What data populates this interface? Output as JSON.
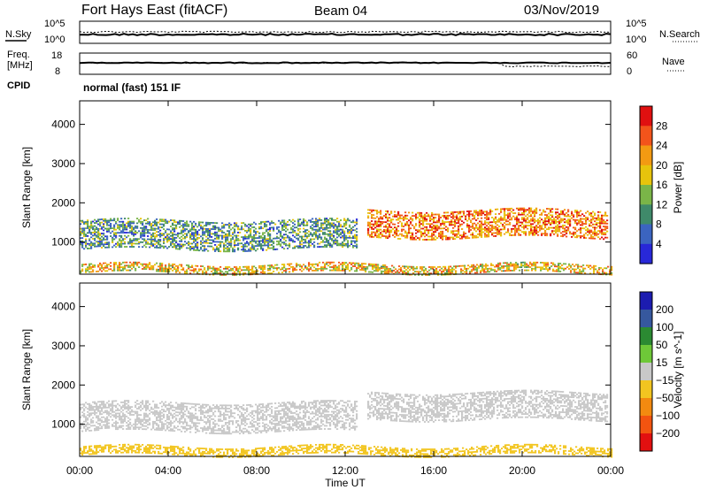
{
  "header": {
    "station": "Fort Hays East (fitACF)",
    "beam": "Beam 04",
    "date": "03/Nov/2019"
  },
  "noise_panel": {
    "left_label": "N.Sky",
    "right_label": "N.Search",
    "left_ticks": [
      "10^5",
      "10^0"
    ],
    "right_ticks": [
      "10^5",
      "10^0"
    ]
  },
  "freq_panel": {
    "left_label_1": "Freq.",
    "left_label_2": "[MHz]",
    "left_ticks": [
      "18",
      "8"
    ],
    "right_label": "Nave",
    "right_ticks": [
      "60",
      "0"
    ]
  },
  "cpid": {
    "label": "CPID",
    "mode_text": "normal (fast) 151 IF"
  },
  "chart_data": [
    {
      "type": "heatmap",
      "title": "",
      "xlabel": "Time UT",
      "ylabel": "Slant Range [km]",
      "xlim": [
        "00:00",
        "24:00"
      ],
      "x_ticks": [
        "00:00",
        "04:00",
        "08:00",
        "12:00",
        "16:00",
        "20:00",
        "00:00"
      ],
      "ylim": [
        180,
        4600
      ],
      "y_ticks": [
        1000,
        2000,
        3000,
        4000
      ],
      "colorbar": {
        "label": "Power [dB]",
        "ticks": [
          4,
          8,
          12,
          16,
          20,
          24,
          28
        ],
        "range": [
          0,
          30
        ]
      },
      "parameter": "power",
      "echo_regions": [
        {
          "name": "near-range band",
          "t_start": 0.0,
          "t_end": 24.0,
          "range_km": [
            200,
            420
          ],
          "value": 18
        },
        {
          "name": "morning band",
          "t_start": 0.0,
          "t_end": 12.5,
          "range_km": [
            800,
            1550
          ],
          "value": 10
        },
        {
          "name": "evening band",
          "t_start": 13.0,
          "t_end": 23.8,
          "range_km": [
            1100,
            1800
          ],
          "value": 22
        }
      ]
    },
    {
      "type": "heatmap",
      "title": "",
      "xlabel": "Time UT",
      "ylabel": "Slant Range [km]",
      "xlim": [
        "00:00",
        "24:00"
      ],
      "x_ticks": [
        "00:00",
        "04:00",
        "08:00",
        "12:00",
        "16:00",
        "20:00",
        "00:00"
      ],
      "ylim": [
        180,
        4600
      ],
      "y_ticks": [
        1000,
        2000,
        3000,
        4000
      ],
      "colorbar": {
        "label": "Velocity [m s^-1]",
        "ticks": [
          200,
          100,
          50,
          15,
          -15,
          -50,
          -100,
          -200
        ],
        "range": [
          -250,
          250
        ]
      },
      "parameter": "velocity",
      "echo_regions": [
        {
          "name": "near-range band",
          "t_start": 0.0,
          "t_end": 24.0,
          "range_km": [
            200,
            420
          ],
          "value": -60
        },
        {
          "name": "morning band",
          "t_start": 0.0,
          "t_end": 12.5,
          "range_km": [
            800,
            1550
          ],
          "value": 0
        },
        {
          "name": "evening band",
          "t_start": 13.0,
          "t_end": 23.8,
          "range_km": [
            1100,
            1800
          ],
          "value": 0
        }
      ]
    }
  ],
  "colors": {
    "power_scale": [
      "#2828d8",
      "#3b64c0",
      "#3f8a6a",
      "#7ab548",
      "#e7c40c",
      "#f29a12",
      "#f2541b",
      "#e01010"
    ],
    "velocity_scale": [
      "#1c1cb0",
      "#36589e",
      "#2b8a32",
      "#6ec838",
      "#c8c8c8",
      "#f2c520",
      "#f28a10",
      "#f25410",
      "#e21010"
    ]
  }
}
